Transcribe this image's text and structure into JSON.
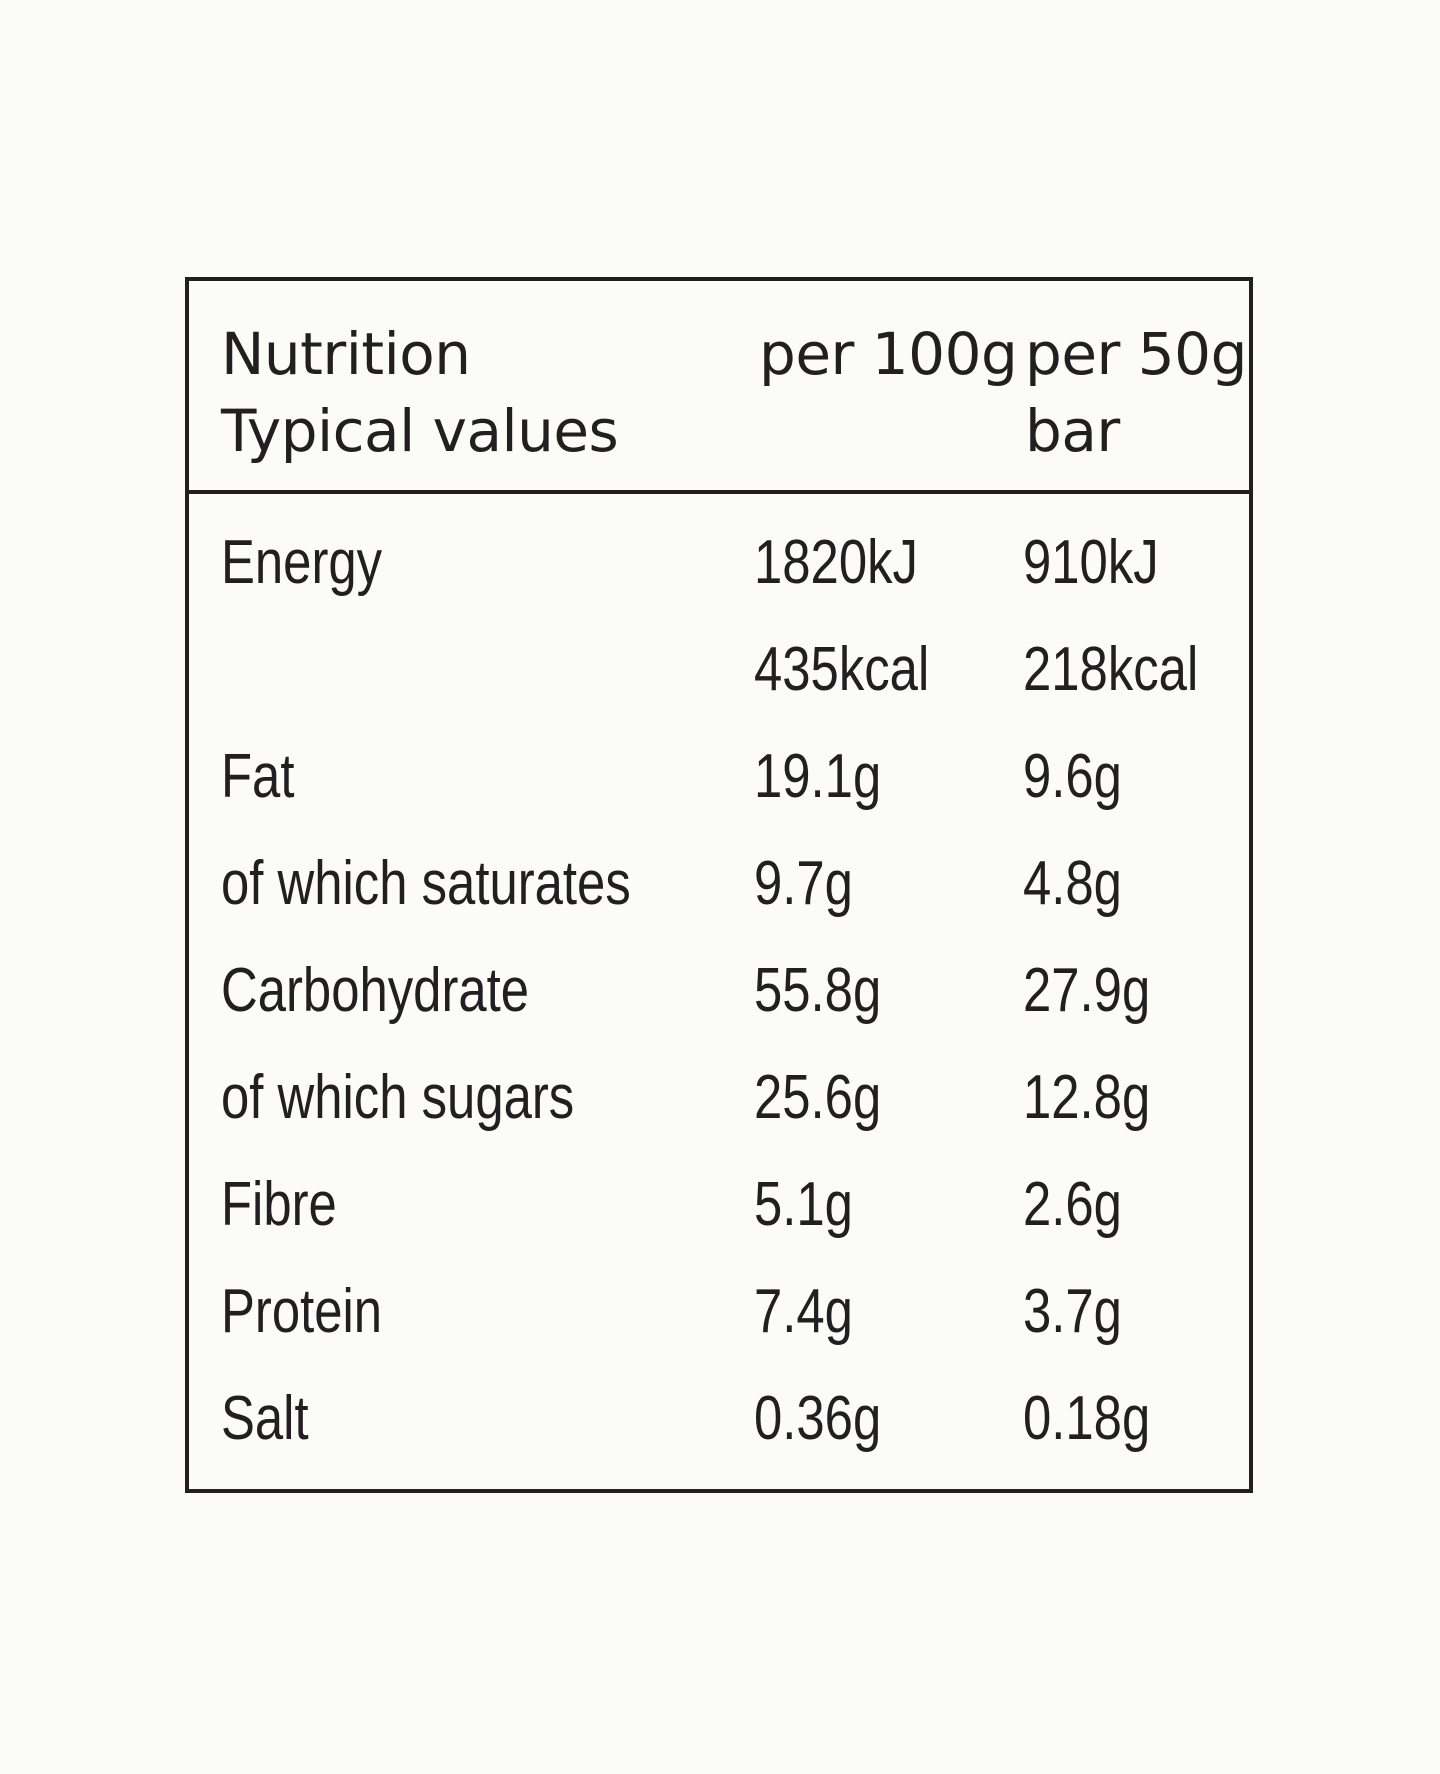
{
  "table": {
    "header": {
      "label": "Nutrition\nTypical values",
      "col1": "per 100g",
      "col2": "per 50g\nbar"
    },
    "rows": [
      {
        "label": "Energy",
        "per100": "1820kJ",
        "per50": "910kJ"
      },
      {
        "label": "",
        "per100": "435kcal",
        "per50": "218kcal"
      },
      {
        "label": "Fat",
        "per100": "19.1g",
        "per50": "9.6g"
      },
      {
        "label": "of which saturates",
        "per100": "9.7g",
        "per50": "4.8g"
      },
      {
        "label": "Carbohydrate",
        "per100": "55.8g",
        "per50": "27.9g"
      },
      {
        "label": "of which sugars",
        "per100": "25.6g",
        "per50": "12.8g"
      },
      {
        "label": "Fibre",
        "per100": "5.1g",
        "per50": "2.6g"
      },
      {
        "label": "Protein",
        "per100": "7.4g",
        "per50": "3.7g"
      },
      {
        "label": "Salt",
        "per100": "0.36g",
        "per50": "0.18g"
      }
    ]
  },
  "colors": {
    "background": "#fbfbf7",
    "ink": "#231f20"
  }
}
